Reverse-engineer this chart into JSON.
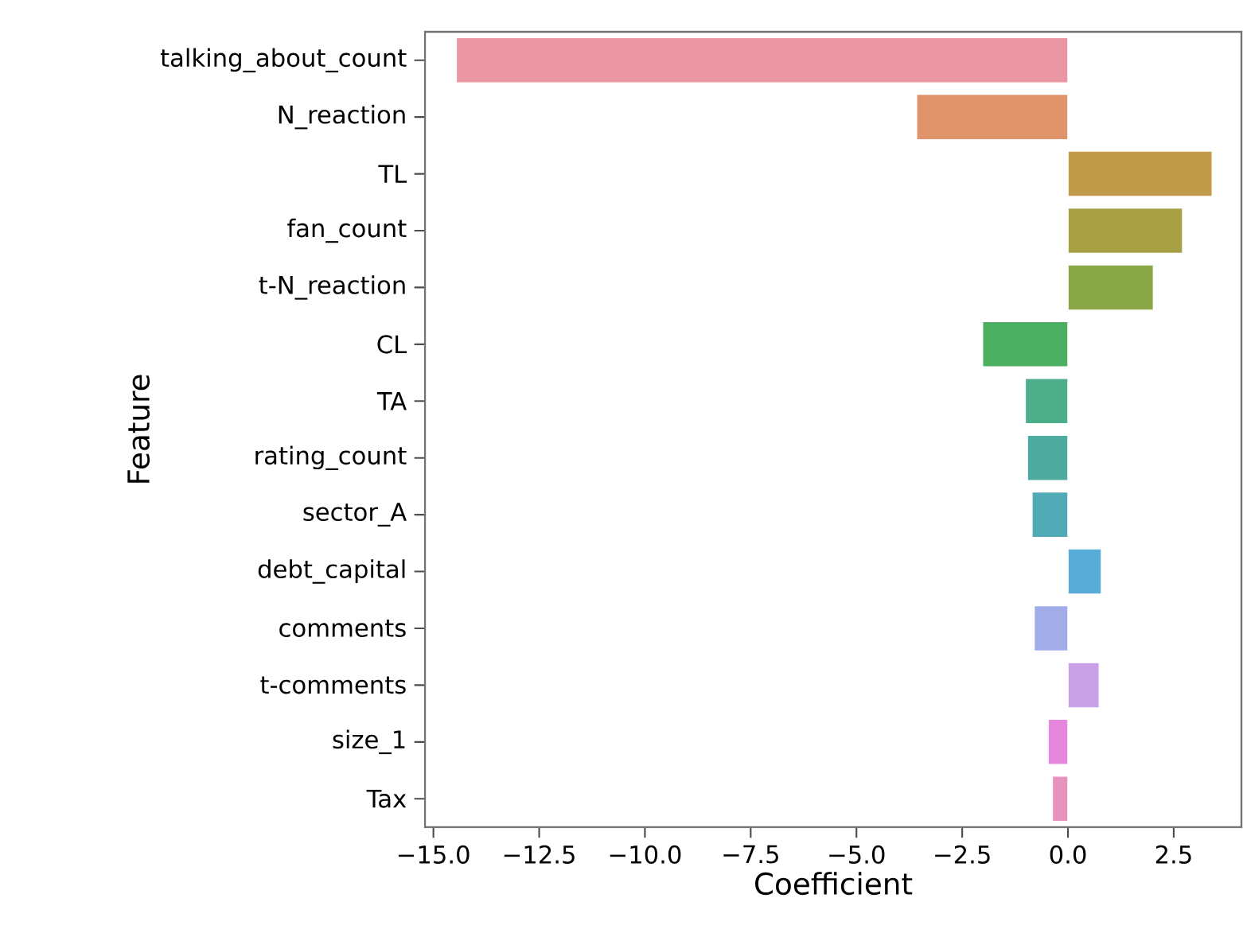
{
  "chart_data": {
    "type": "bar",
    "orientation": "horizontal",
    "xlabel": "Coefficient",
    "ylabel": "Feature",
    "categories": [
      "talking_about_count",
      "N_reaction",
      "TL",
      "fan_count",
      "t-N_reaction",
      "CL",
      "TA",
      "rating_count",
      "sector_A",
      "debt_capital",
      "comments",
      "t-comments",
      "size_1",
      "Tax"
    ],
    "values": [
      -14.46,
      -3.58,
      3.41,
      2.71,
      2.02,
      -2.02,
      -1.01,
      -0.96,
      -0.85,
      0.79,
      -0.8,
      0.74,
      -0.47,
      -0.37
    ],
    "colors": [
      "#ea96a3",
      "#e19369",
      "#c19b4a",
      "#a7a044",
      "#89a745",
      "#4bb062",
      "#4daf8a",
      "#4eab9f",
      "#50aab5",
      "#58add8",
      "#a1ace9",
      "#c8a0e6",
      "#e686dd",
      "#e893bd"
    ],
    "xlim": [
      -15.2,
      4.1
    ],
    "xticks": [
      {
        "value": -15,
        "label": "−15.0"
      },
      {
        "value": -12.5,
        "label": "−12.5"
      },
      {
        "value": -10,
        "label": "−10.0"
      },
      {
        "value": -7.5,
        "label": "−7.5"
      },
      {
        "value": -5,
        "label": "−5.0"
      },
      {
        "value": -2.5,
        "label": "−2.5"
      },
      {
        "value": 0,
        "label": "0.0"
      },
      {
        "value": 2.5,
        "label": "2.5"
      }
    ],
    "grid": false
  }
}
